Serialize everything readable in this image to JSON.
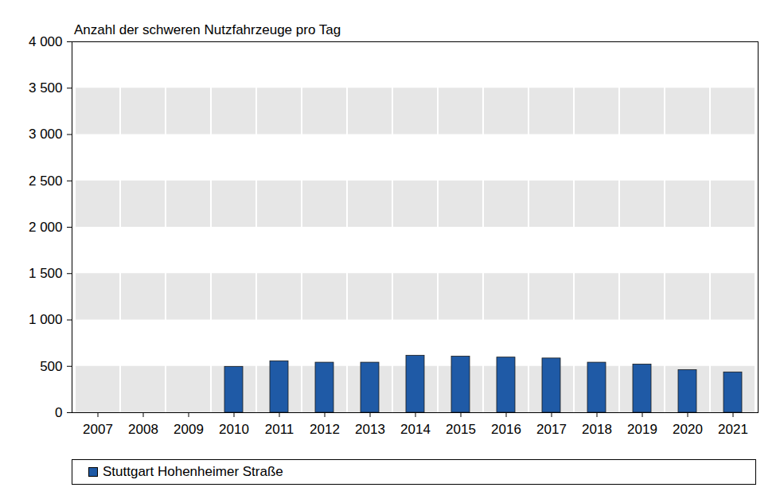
{
  "chart_data": {
    "type": "bar",
    "title": "Anzahl der schweren Nutzfahrzeuge pro Tag",
    "categories": [
      "2007",
      "2008",
      "2009",
      "2010",
      "2011",
      "2012",
      "2013",
      "2014",
      "2015",
      "2016",
      "2017",
      "2018",
      "2019",
      "2020",
      "2021"
    ],
    "series": [
      {
        "name": "Stuttgart Hohenheimer Straße",
        "color": "#1f5aa6",
        "values": [
          null,
          null,
          null,
          495,
          555,
          540,
          540,
          615,
          605,
          595,
          585,
          540,
          520,
          460,
          435
        ]
      }
    ],
    "ylim": [
      0,
      4000
    ],
    "yticks": [
      0,
      500,
      {
        "value": 1000,
        "label": "1 000"
      },
      {
        "value": 1500,
        "label": "1 500"
      },
      {
        "value": 2000,
        "label": "2 000"
      },
      {
        "value": 2500,
        "label": "2 500"
      },
      {
        "value": 3000,
        "label": "3 000"
      },
      {
        "value": 3500,
        "label": "3 500"
      },
      {
        "value": 4000,
        "label": "4 000"
      }
    ],
    "grid": true,
    "legend": "bottom"
  }
}
